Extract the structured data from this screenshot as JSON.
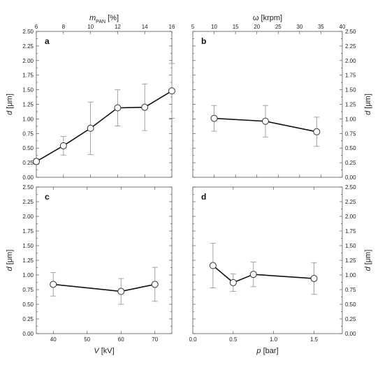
{
  "chart_data": [
    {
      "panel": "a",
      "type": "scatter",
      "xlabel": "",
      "ylabel_italic": "d",
      "ylabel_rest": " [μm]",
      "xlim": [
        6,
        16
      ],
      "ylim": [
        0,
        2.5
      ],
      "x_ticks": [
        "6",
        "8",
        "10",
        "12",
        "14",
        "16"
      ],
      "top_axis_label_italic": "m",
      "top_axis_label_sub": "PAN",
      "top_axis_label_rest": " [%]",
      "series": [
        {
          "x": [
            6,
            8,
            10,
            12,
            14,
            16
          ],
          "y": [
            0.27,
            0.54,
            0.84,
            1.19,
            1.2,
            1.48
          ],
          "err": [
            0.05,
            0.16,
            0.45,
            0.31,
            0.4,
            0.47
          ]
        }
      ]
    },
    {
      "panel": "b",
      "type": "scatter",
      "xlim": [
        5,
        40
      ],
      "ylim": [
        0,
        2.5
      ],
      "x_ticks": [
        "5",
        "10",
        "15",
        "20",
        "25",
        "30",
        "35",
        "40"
      ],
      "top_axis_label": "ω [krpm]",
      "ylabel_italic": "d",
      "ylabel_rest": " [μm]",
      "series": [
        {
          "x": [
            10,
            22,
            34
          ],
          "y": [
            1.01,
            0.96,
            0.78
          ],
          "err": [
            0.22,
            0.27,
            0.25
          ]
        }
      ]
    },
    {
      "panel": "c",
      "type": "scatter",
      "xlim": [
        35,
        75
      ],
      "ylim": [
        0,
        2.5
      ],
      "x_ticks": [
        "40",
        "50",
        "60",
        "70"
      ],
      "xlabel_italic": "V",
      "xlabel_rest": " [kV]",
      "ylabel_italic": "d",
      "ylabel_rest": " [μm]",
      "series": [
        {
          "x": [
            40,
            60,
            70
          ],
          "y": [
            0.84,
            0.72,
            0.84
          ],
          "err": [
            0.2,
            0.22,
            0.29
          ]
        }
      ]
    },
    {
      "panel": "d",
      "type": "scatter",
      "xlim": [
        0,
        1.85
      ],
      "ylim": [
        0,
        2.5
      ],
      "x_ticks": [
        "0.0",
        "0.5",
        "1.0",
        "1.5"
      ],
      "xlabel_italic": "p",
      "xlabel_rest": " [bar]",
      "ylabel_italic": "d",
      "ylabel_rest": " [μm]",
      "series": [
        {
          "x": [
            0.25,
            0.5,
            0.75,
            1.5
          ],
          "y": [
            1.16,
            0.87,
            1.01,
            0.94
          ],
          "err": [
            0.38,
            0.15,
            0.21,
            0.27
          ]
        }
      ]
    }
  ],
  "y_ticks": [
    "0.00",
    "0.25",
    "0.50",
    "0.75",
    "1.00",
    "1.25",
    "1.50",
    "1.75",
    "2.00",
    "2.25",
    "2.50"
  ]
}
